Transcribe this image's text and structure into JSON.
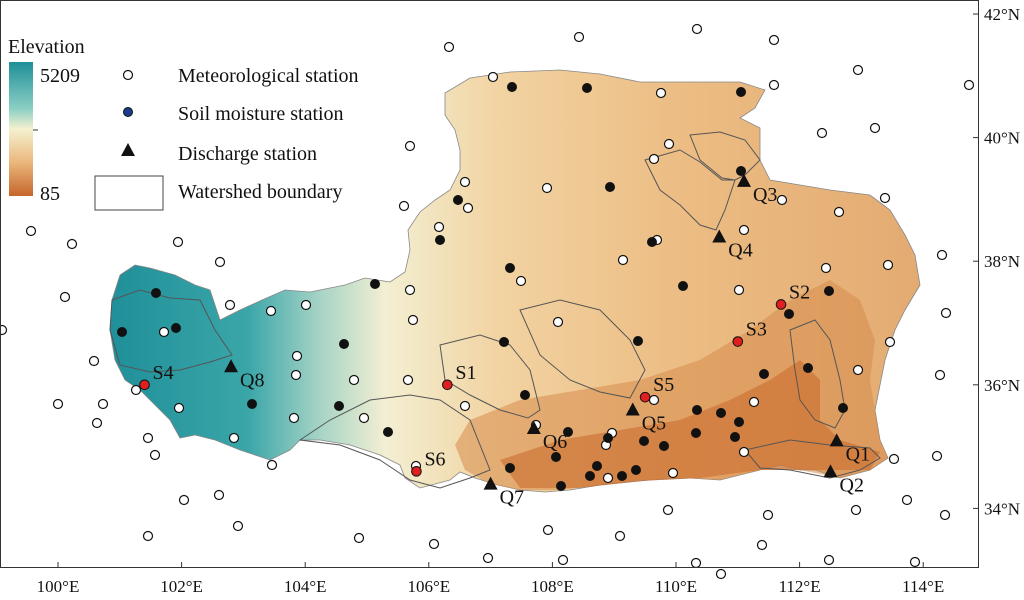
{
  "legend": {
    "elevation_title": "Elevation",
    "elevation_max": "5209",
    "elevation_min": "85",
    "items": [
      {
        "symbol": "open-circle-icon",
        "label": "Meteorological station"
      },
      {
        "symbol": "blue-dot-icon",
        "label": "Soil moisture station"
      },
      {
        "symbol": "triangle-icon",
        "label": "Discharge station"
      },
      {
        "symbol": "rectangle-icon",
        "label": "Watershed boundary"
      }
    ],
    "colors": {
      "high": "#2a9aa3",
      "mid": "#f4f1cf",
      "low": "#c9682a"
    }
  },
  "x_ticks": [
    "100°E",
    "102°E",
    "104°E",
    "106°E",
    "108°E",
    "110°E",
    "112°E",
    "114°E"
  ],
  "y_ticks": [
    "42°N",
    "40°N",
    "38°N",
    "36°N",
    "34°N"
  ],
  "discharge_stations": [
    {
      "label": "Q1",
      "lon": 112.6,
      "lat": 35.1
    },
    {
      "label": "Q2",
      "lon": 112.5,
      "lat": 34.6
    },
    {
      "label": "Q3",
      "lon": 111.1,
      "lat": 39.3
    },
    {
      "label": "Q4",
      "lon": 110.7,
      "lat": 38.4
    },
    {
      "label": "Q5",
      "lon": 109.3,
      "lat": 35.6
    },
    {
      "label": "Q6",
      "lon": 107.7,
      "lat": 35.3
    },
    {
      "label": "Q7",
      "lon": 107.0,
      "lat": 34.4
    },
    {
      "label": "Q8",
      "lon": 102.8,
      "lat": 36.3
    }
  ],
  "soil_stations": [
    {
      "label": "S1",
      "lon": 106.3,
      "lat": 36.0
    },
    {
      "label": "S2",
      "lon": 111.7,
      "lat": 37.3
    },
    {
      "label": "S3",
      "lon": 111.0,
      "lat": 36.7
    },
    {
      "label": "S4",
      "lon": 101.4,
      "lat": 36.0
    },
    {
      "label": "S5",
      "lon": 109.5,
      "lat": 35.8
    },
    {
      "label": "S6",
      "lon": 105.8,
      "lat": 34.6
    }
  ],
  "colors": {
    "soil_station": "#e02020",
    "frame": "#333333",
    "boundary": "#555555"
  }
}
